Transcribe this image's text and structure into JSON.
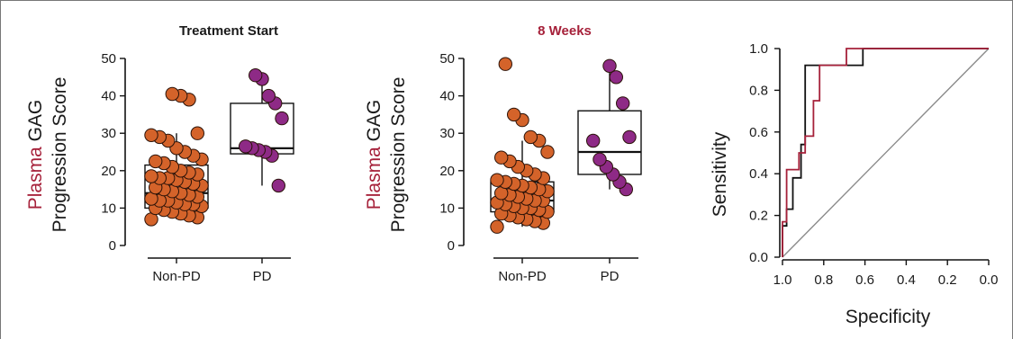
{
  "colors": {
    "accent_red": "#a6213a",
    "nonpd_fill": "#d4632a",
    "pd_fill": "#8e2a86",
    "diagonal": "#8a8a8a",
    "roc_black": "#111111",
    "roc_red": "#a6213a"
  },
  "chart_data": [
    {
      "type": "scatter",
      "title": "Treatment Start",
      "ylabel_part1": "Plasma",
      "ylabel_part2": " GAG",
      "ylabel_line2": "Progression Score",
      "ylim": [
        0,
        50
      ],
      "yticks": [
        "0",
        "10",
        "20",
        "30",
        "40",
        "50"
      ],
      "categories": [
        "Non-PD",
        "PD"
      ],
      "box": [
        {
          "q1": 10,
          "median": 14,
          "q3": 21.5,
          "whisker_low": 7,
          "whisker_high": 30
        },
        {
          "q1": 24.5,
          "median": 26,
          "q3": 38,
          "whisker_low": 16,
          "whisker_high": 45
        }
      ],
      "series": [
        {
          "values": [
            7,
            7.5,
            8,
            8.5,
            9,
            9.5,
            10,
            10.5,
            11,
            11,
            11.5,
            12,
            12,
            12.5,
            13,
            13.5,
            14,
            14.5,
            15,
            15.5,
            16,
            16.5,
            17,
            17.5,
            18,
            18,
            18.5,
            19,
            19.5,
            20,
            21,
            22,
            22.5,
            23,
            24,
            25,
            26,
            28,
            29,
            29.5,
            30,
            39,
            40,
            40.5
          ]
        },
        {
          "values": [
            16,
            24,
            25,
            25.5,
            26,
            26.5,
            34,
            38,
            40,
            44.5,
            45.5
          ]
        }
      ]
    },
    {
      "type": "scatter",
      "title": "8 Weeks",
      "ylabel_part1": "Plasma",
      "ylabel_part2": " GAG",
      "ylabel_line2": "Progression Score",
      "ylim": [
        0,
        50
      ],
      "yticks": [
        "0",
        "10",
        "20",
        "30",
        "40",
        "50"
      ],
      "categories": [
        "Non-PD",
        "PD"
      ],
      "box": [
        {
          "q1": 9,
          "median": 12,
          "q3": 17,
          "whisker_low": 5,
          "whisker_high": 28
        },
        {
          "q1": 19,
          "median": 25,
          "q3": 36,
          "whisker_low": 15,
          "whisker_high": 48
        }
      ],
      "series": [
        {
          "values": [
            5,
            6,
            6.5,
            7,
            7.5,
            8,
            8.5,
            9,
            9.5,
            10,
            10,
            10.5,
            11,
            11.5,
            12,
            12,
            12.5,
            13,
            13.5,
            14,
            14.5,
            15,
            15.5,
            16,
            16.5,
            17,
            17.5,
            18,
            19,
            20,
            21,
            22.5,
            23.5,
            25,
            28,
            29,
            33.5,
            35,
            48.5
          ]
        },
        {
          "values": [
            15,
            17,
            19,
            21,
            23,
            28,
            29,
            38,
            45,
            48
          ]
        }
      ]
    },
    {
      "type": "line",
      "xlabel": "Specificity",
      "ylabel": "Sensitivity",
      "xlim": [
        1.0,
        0.0
      ],
      "ylim": [
        0.0,
        1.0
      ],
      "xticks": [
        "1.0",
        "0.8",
        "0.6",
        "0.4",
        "0.2",
        "0.0"
      ],
      "yticks": [
        "0.0",
        "0.2",
        "0.4",
        "0.6",
        "0.8",
        "1.0"
      ],
      "series": [
        {
          "color": "#111111",
          "points": [
            [
              1.0,
              0.0
            ],
            [
              1.0,
              0.15
            ],
            [
              0.98,
              0.15
            ],
            [
              0.98,
              0.23
            ],
            [
              0.95,
              0.23
            ],
            [
              0.95,
              0.38
            ],
            [
              0.91,
              0.38
            ],
            [
              0.91,
              0.54
            ],
            [
              0.89,
              0.54
            ],
            [
              0.89,
              0.92
            ],
            [
              0.7,
              0.92
            ],
            [
              0.7,
              0.92
            ],
            [
              0.61,
              0.92
            ],
            [
              0.61,
              1.0
            ],
            [
              0.0,
              1.0
            ]
          ]
        },
        {
          "color": "#a6213a",
          "points": [
            [
              1.0,
              0.0
            ],
            [
              1.0,
              0.17
            ],
            [
              0.98,
              0.17
            ],
            [
              0.98,
              0.42
            ],
            [
              0.92,
              0.42
            ],
            [
              0.92,
              0.5
            ],
            [
              0.89,
              0.5
            ],
            [
              0.89,
              0.58
            ],
            [
              0.85,
              0.58
            ],
            [
              0.85,
              0.75
            ],
            [
              0.82,
              0.75
            ],
            [
              0.82,
              0.92
            ],
            [
              0.69,
              0.92
            ],
            [
              0.69,
              1.0
            ],
            [
              0.0,
              1.0
            ]
          ]
        },
        {
          "color": "#8a8a8a",
          "points": [
            [
              1.0,
              0.0
            ],
            [
              0.0,
              1.0
            ]
          ]
        }
      ]
    }
  ]
}
